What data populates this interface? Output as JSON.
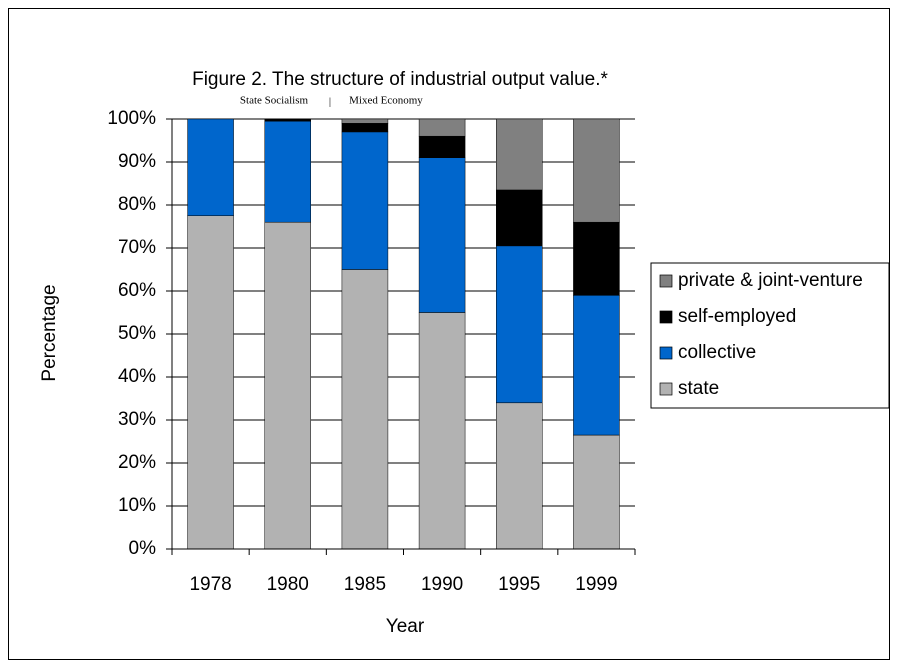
{
  "chart_data": {
    "type": "stacked_bar",
    "title": "Figure 2. The structure of industrial output value.*",
    "annotations": [
      "State Socialism",
      "|",
      "Mixed Economy"
    ],
    "x_label": "Year",
    "y_label": "Percentage",
    "categories": [
      "1978",
      "1980",
      "1985",
      "1990",
      "1995",
      "1999"
    ],
    "series": [
      {
        "name": "state",
        "color": "#b2b2b2",
        "values": [
          77.5,
          76,
          65,
          55,
          34,
          26.5
        ]
      },
      {
        "name": "collective",
        "color": "#0066cc",
        "values": [
          22.5,
          23.5,
          32,
          36,
          36.5,
          32.5
        ]
      },
      {
        "name": "self-employed",
        "color": "#000000",
        "values": [
          0,
          0.5,
          2,
          5,
          13,
          17
        ]
      },
      {
        "name": "private & joint-venture",
        "color": "#808080",
        "values": [
          0,
          0,
          1,
          4,
          16.5,
          24
        ]
      }
    ],
    "ylim": [
      0,
      100
    ],
    "yticks": [
      {
        "value": 0,
        "label": "0%"
      },
      {
        "value": 10,
        "label": "10%"
      },
      {
        "value": 20,
        "label": "20%"
      },
      {
        "value": 30,
        "label": "30%"
      },
      {
        "value": 40,
        "label": "40%"
      },
      {
        "value": 50,
        "label": "50%"
      },
      {
        "value": 60,
        "label": "60%"
      },
      {
        "value": 70,
        "label": "70%"
      },
      {
        "value": 80,
        "label": "80%"
      },
      {
        "value": 90,
        "label": "90%"
      },
      {
        "value": 100,
        "label": "100%"
      }
    ],
    "grid": true,
    "legend": "right"
  }
}
